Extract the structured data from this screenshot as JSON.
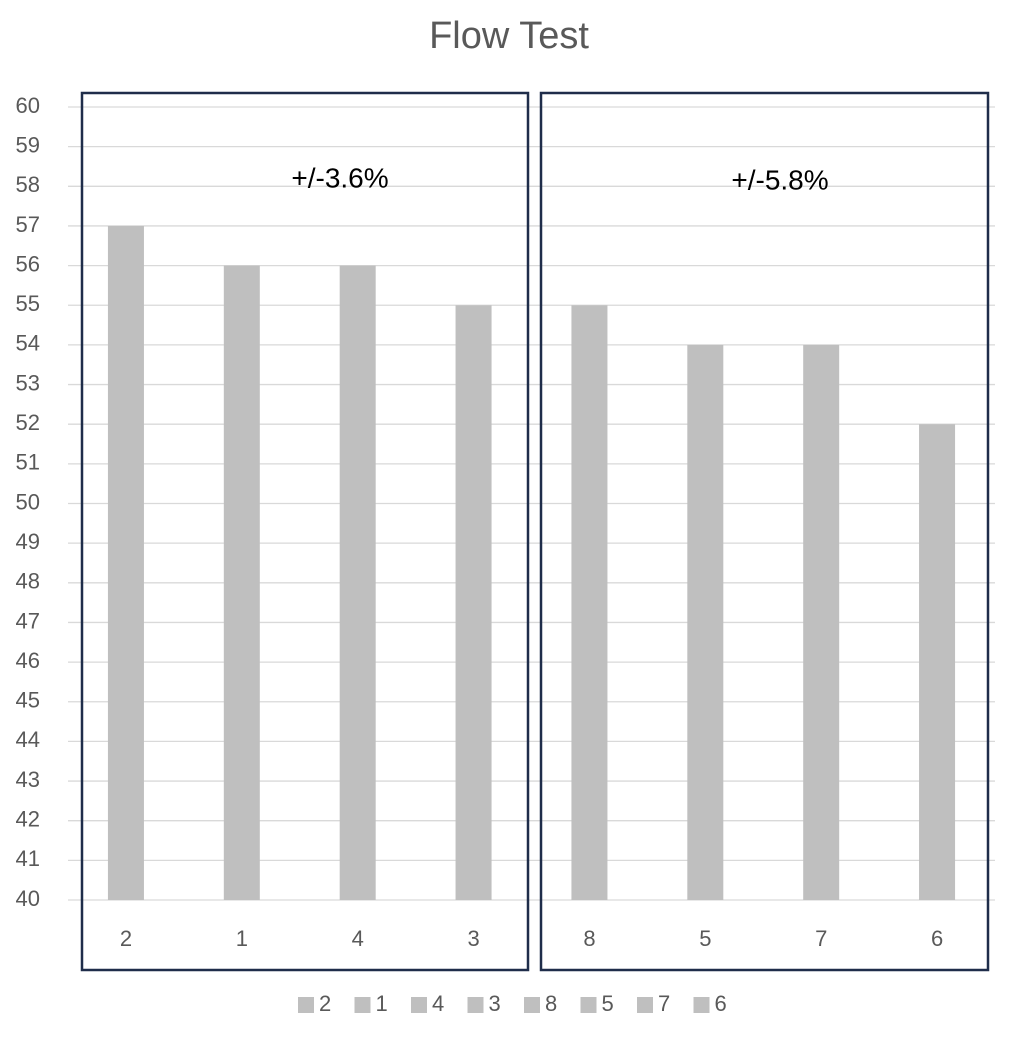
{
  "chart_data": {
    "type": "bar",
    "title": "Flow Test",
    "categories": [
      "2",
      "1",
      "4",
      "3",
      "8",
      "5",
      "7",
      "6"
    ],
    "values": [
      57,
      56,
      56,
      55,
      55,
      54,
      54,
      52
    ],
    "color": "#bfbfbf",
    "ylim": [
      40,
      60
    ],
    "yticks": [
      40,
      41,
      42,
      43,
      44,
      45,
      46,
      47,
      48,
      49,
      50,
      51,
      52,
      53,
      54,
      55,
      56,
      57,
      58,
      59,
      60
    ],
    "grid": true,
    "legend": "bottom",
    "annotations": [
      "+/-3.6%",
      "+/-5.8%"
    ]
  }
}
